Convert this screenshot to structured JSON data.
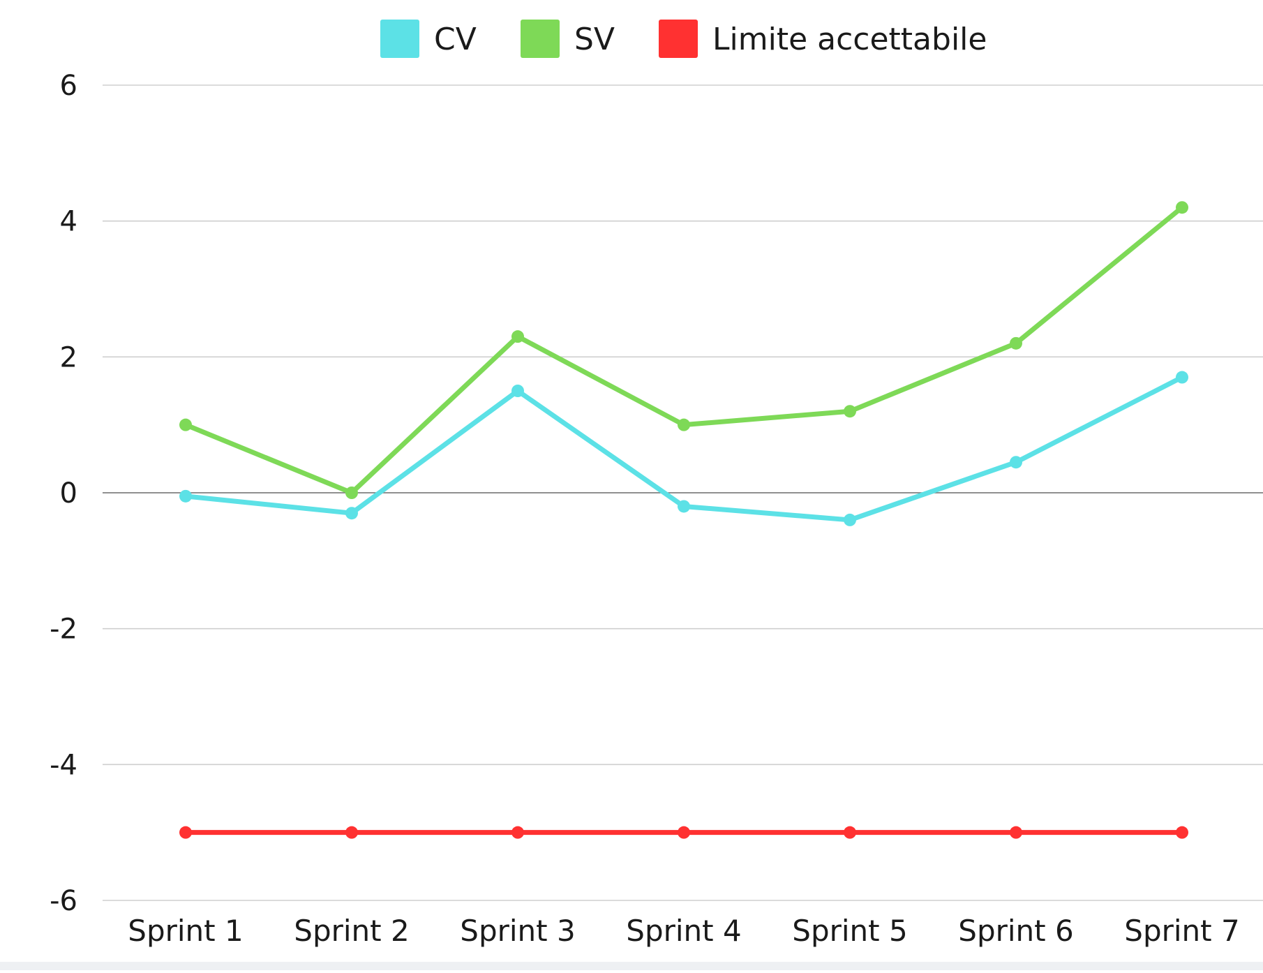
{
  "chart_data": {
    "type": "line",
    "title": "",
    "xlabel": "",
    "ylabel": "",
    "categories": [
      "Sprint 1",
      "Sprint 2",
      "Sprint 3",
      "Sprint 4",
      "Sprint 5",
      "Sprint 6",
      "Sprint 7"
    ],
    "ylim": [
      -6,
      6
    ],
    "yticks": [
      6,
      4,
      2,
      0,
      -2,
      -4,
      -6
    ],
    "grid": true,
    "legend_position": "top-center",
    "series": [
      {
        "name": "CV",
        "color": "#5ce1e6",
        "values": [
          -0.05,
          -0.3,
          1.5,
          -0.2,
          -0.4,
          0.45,
          1.7
        ]
      },
      {
        "name": "SV",
        "color": "#7ed957",
        "values": [
          1.0,
          0.0,
          2.3,
          1.0,
          1.2,
          2.2,
          4.2
        ]
      },
      {
        "name": "Limite accettabile",
        "color": "#ff3131",
        "values": [
          -5,
          -5,
          -5,
          -5,
          -5,
          -5,
          -5
        ]
      }
    ]
  }
}
